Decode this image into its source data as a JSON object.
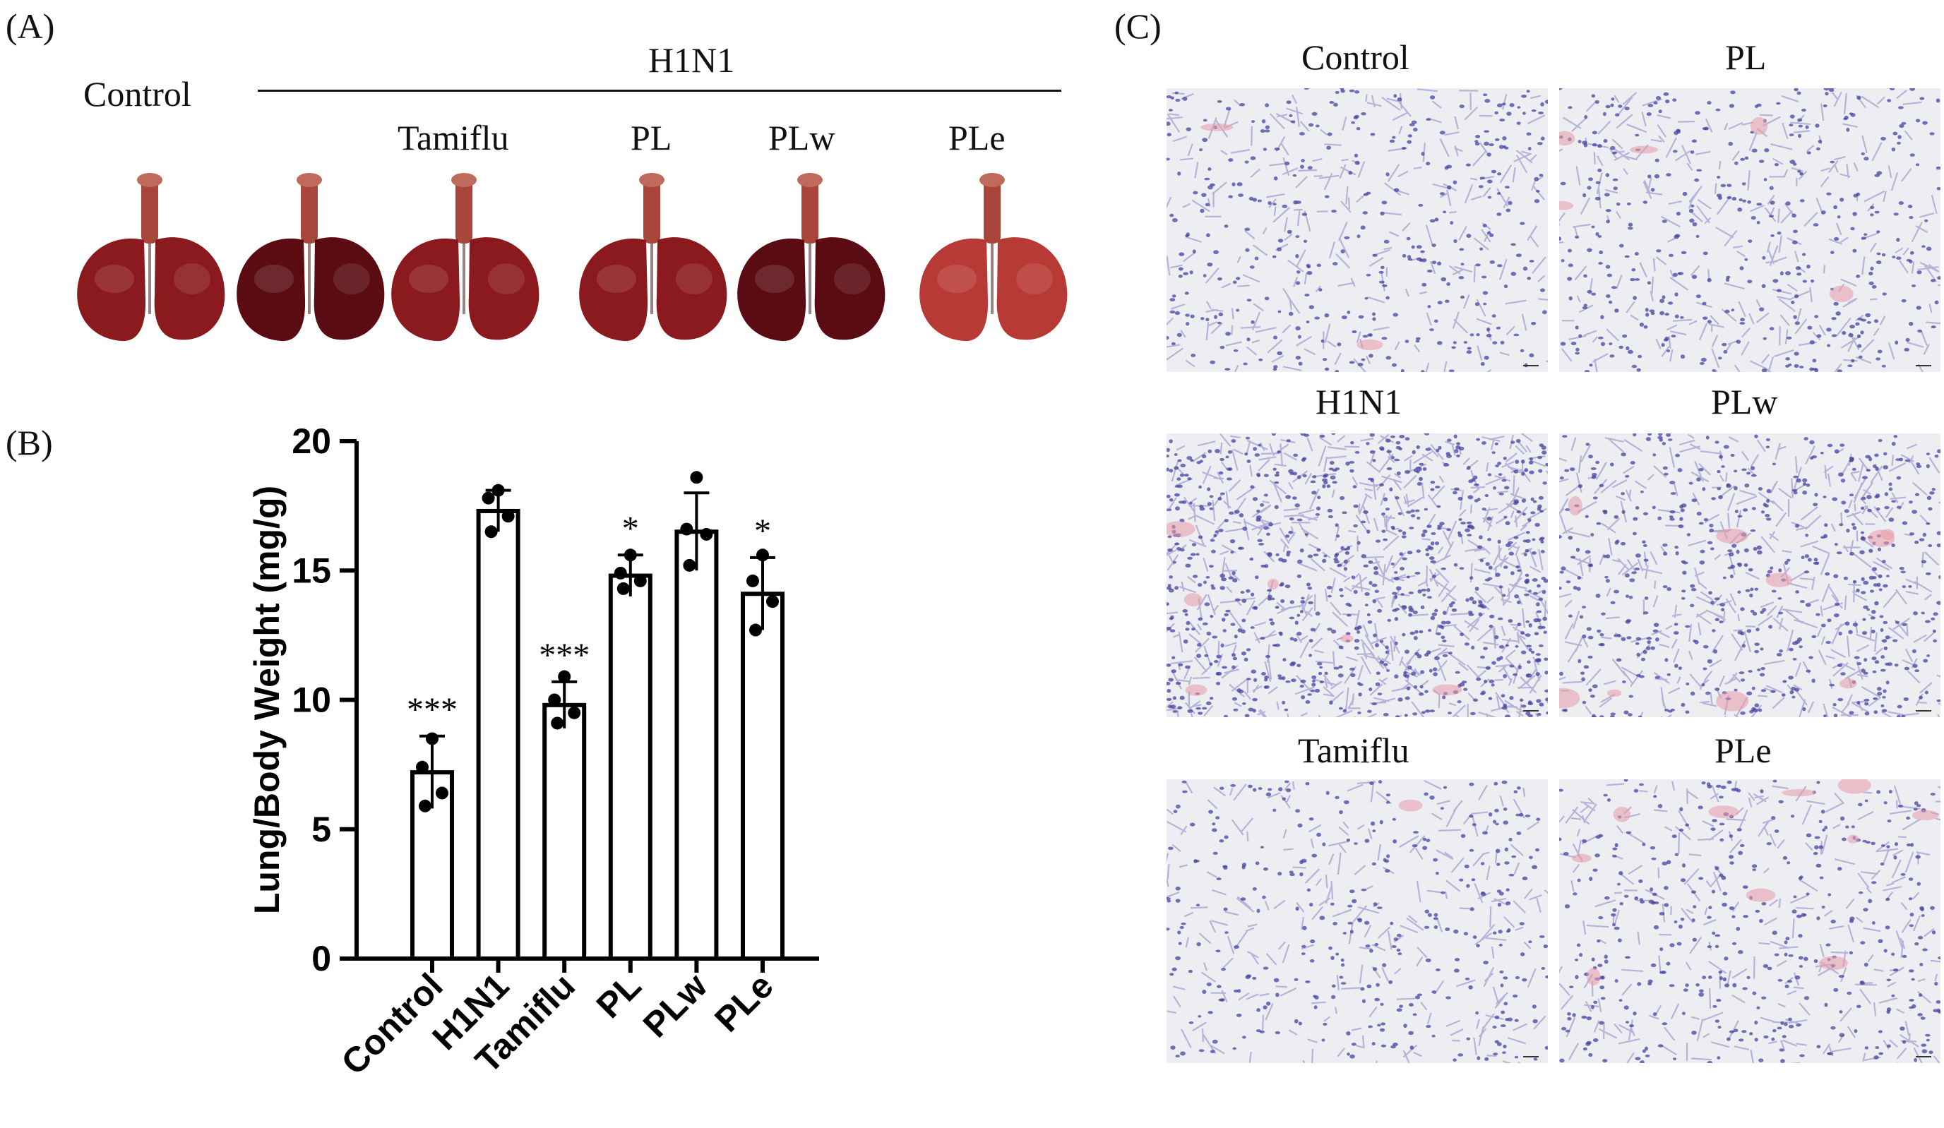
{
  "figure": {
    "panel_a": {
      "letter": "(A)",
      "group_header": "H1N1",
      "control_label": "Control",
      "treatment_labels": [
        "Tamiflu",
        "PL",
        "PLw",
        "PLe"
      ]
    },
    "panel_b": {
      "letter": "(B)"
    },
    "panel_c": {
      "letter": "(C)",
      "labels": [
        "Control",
        "PL",
        "H1N1",
        "PLw",
        "Tamiflu",
        "PLe"
      ]
    },
    "colors": {
      "lung_dark": "#5a0c12",
      "lung_mid": "#8b1a1e",
      "lung_light": "#b83a36",
      "stain_purple": "#4a3fa0",
      "stain_pink": "#e79aa8"
    }
  },
  "chart_data": {
    "type": "bar",
    "categories": [
      "Control",
      "H1N1",
      "Tamiflu",
      "PL",
      "PLw",
      "PLe"
    ],
    "values": [
      7.2,
      17.3,
      9.8,
      14.8,
      16.5,
      14.1
    ],
    "errors": [
      1.4,
      0.8,
      0.9,
      0.8,
      1.5,
      1.4
    ],
    "points": [
      [
        8.5,
        7.4,
        6.4,
        5.9
      ],
      [
        18.1,
        17.8,
        17.1,
        16.5
      ],
      [
        10.9,
        10.0,
        9.5,
        9.1
      ],
      [
        15.6,
        14.9,
        14.6,
        14.3
      ],
      [
        18.6,
        16.6,
        16.4,
        15.2
      ],
      [
        15.6,
        14.6,
        13.8,
        12.7
      ]
    ],
    "significance": [
      "***",
      "",
      "***",
      "*",
      "",
      "*"
    ],
    "ylabel": "Lung/Body Weight (mg/g)",
    "ylim": [
      0,
      20
    ],
    "yticks": [
      "0",
      "5",
      "10",
      "15",
      "20"
    ],
    "ytick_values": [
      0,
      5,
      10,
      15,
      20
    ]
  }
}
